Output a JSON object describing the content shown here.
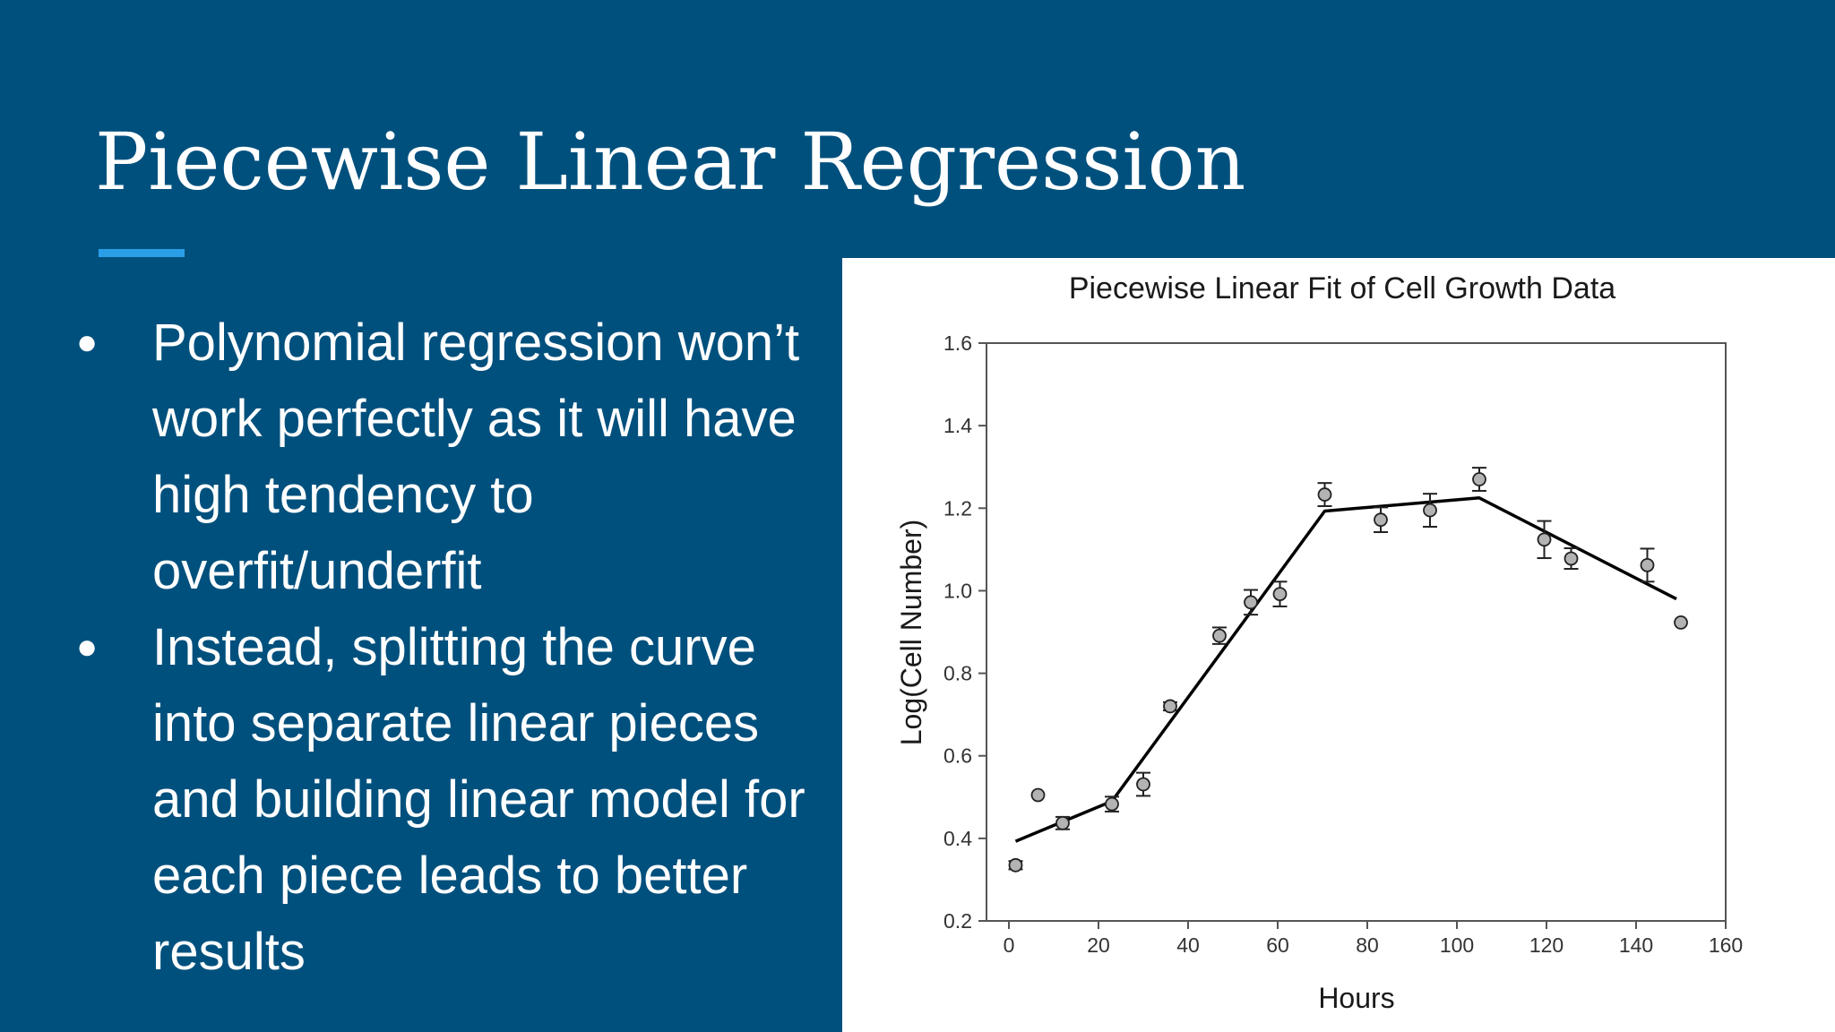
{
  "slide": {
    "title": "Piecewise Linear Regression",
    "bullets": [
      {
        "text": "Polynomial regression won’t work perfectly as it will have high tendency to overfit/underfit"
      },
      {
        "text": "Instead, splitting the curve into separate linear pieces and building linear model for each piece leads to better results"
      }
    ]
  },
  "colors": {
    "background": "#00507d",
    "accent": "#2a9fe8",
    "chart_background": "#ffffff",
    "marker_fill": "#b3b3b3"
  },
  "chart_data": {
    "type": "scatter",
    "title": "Piecewise Linear Fit of Cell Growth Data",
    "xlabel": "Hours",
    "ylabel": "Log(Cell Number)",
    "xlim": [
      -5,
      160
    ],
    "ylim": [
      0.2,
      1.6
    ],
    "xticks": [
      "0",
      "20",
      "40",
      "60",
      "80",
      "100",
      "120",
      "140",
      "160"
    ],
    "yticks": [
      "0.2",
      "0.4",
      "0.6",
      "0.8",
      "1.0",
      "1.2",
      "1.4",
      "1.6"
    ],
    "grid": false,
    "points": [
      {
        "x": 1.5,
        "y": 0.335,
        "err": 0.01
      },
      {
        "x": 6.5,
        "y": 0.505,
        "err": 0
      },
      {
        "x": 12,
        "y": 0.437,
        "err": 0.015
      },
      {
        "x": 23,
        "y": 0.483,
        "err": 0.018
      },
      {
        "x": 30,
        "y": 0.531,
        "err": 0.028
      },
      {
        "x": 36,
        "y": 0.72,
        "err": 0.01
      },
      {
        "x": 47,
        "y": 0.891,
        "err": 0.02
      },
      {
        "x": 54,
        "y": 0.972,
        "err": 0.03
      },
      {
        "x": 60.5,
        "y": 0.992,
        "err": 0.03
      },
      {
        "x": 70.5,
        "y": 1.233,
        "err": 0.028
      },
      {
        "x": 83,
        "y": 1.172,
        "err": 0.03
      },
      {
        "x": 94,
        "y": 1.195,
        "err": 0.04
      },
      {
        "x": 105,
        "y": 1.27,
        "err": 0.028
      },
      {
        "x": 119.5,
        "y": 1.124,
        "err": 0.045
      },
      {
        "x": 125.5,
        "y": 1.078,
        "err": 0.025
      },
      {
        "x": 142.5,
        "y": 1.062,
        "err": 0.04
      },
      {
        "x": 150,
        "y": 0.923,
        "err": 0
      }
    ],
    "fit_line": [
      {
        "x": 1.5,
        "y": 0.393
      },
      {
        "x": 23,
        "y": 0.49
      },
      {
        "x": 70.5,
        "y": 1.193
      },
      {
        "x": 105,
        "y": 1.225
      },
      {
        "x": 149,
        "y": 0.98
      }
    ]
  }
}
